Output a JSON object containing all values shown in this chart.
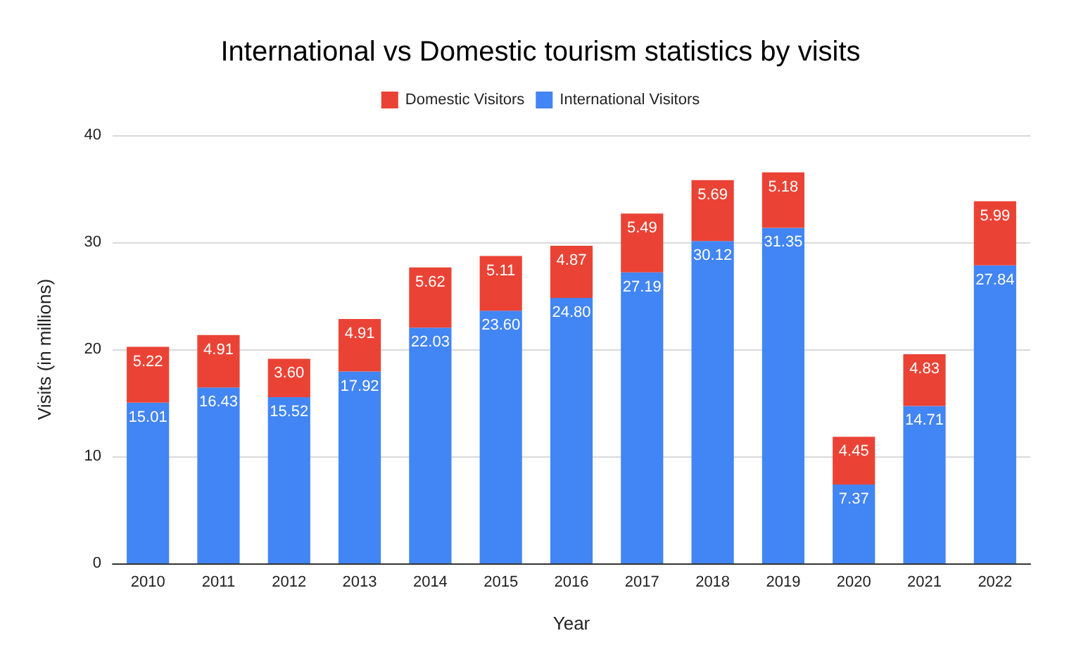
{
  "chart_data": {
    "type": "bar",
    "title": "International vs Domestic tourism statistics by visits",
    "xlabel": "Year",
    "ylabel": "Visits (in millions)",
    "categories": [
      "2010",
      "2011",
      "2012",
      "2013",
      "2014",
      "2015",
      "2016",
      "2017",
      "2018",
      "2019",
      "2020",
      "2021",
      "2022"
    ],
    "stacked": true,
    "ylim": [
      0,
      40
    ],
    "yticks": [
      0,
      10,
      20,
      30,
      40
    ],
    "grid": "y",
    "legend": "top",
    "series": [
      {
        "name": "International Visitors",
        "color": "#4285f4",
        "values": [
          15.01,
          16.43,
          15.52,
          17.92,
          22.03,
          23.6,
          24.8,
          27.19,
          30.12,
          31.35,
          7.37,
          14.71,
          27.84
        ],
        "value_labels": [
          "15.01",
          "16.43",
          "15.52",
          "17.92",
          "22.03",
          "23.60",
          "24.80",
          "27.19",
          "30.12",
          "31.35",
          "7.37",
          "14.71",
          "27.84"
        ]
      },
      {
        "name": "Domestic Visitors",
        "color": "#ea4335",
        "values": [
          5.22,
          4.91,
          3.6,
          4.91,
          5.62,
          5.11,
          4.87,
          5.49,
          5.69,
          5.18,
          4.45,
          4.83,
          5.99
        ],
        "value_labels": [
          "5.22",
          "4.91",
          "3.60",
          "4.91",
          "5.62",
          "5.11",
          "4.87",
          "5.49",
          "5.69",
          "5.18",
          "4.45",
          "4.83",
          "5.99"
        ]
      }
    ]
  }
}
